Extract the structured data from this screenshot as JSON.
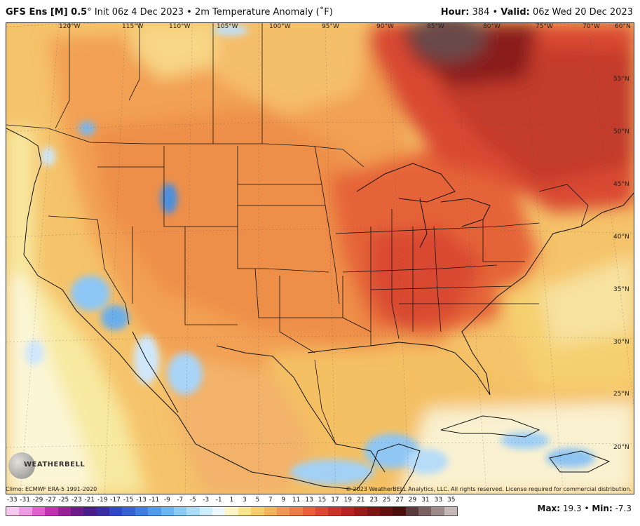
{
  "header": {
    "model": "GFS Ens [M] 0.5",
    "degree_mark": "°",
    "init": " Init 06z 4 Dec 2023",
    "separator": " • ",
    "field": "2m Temperature Anomaly (˚F)",
    "hour_label": "Hour:",
    "hour_value": " 384",
    "valid_label": "Valid:",
    "valid_value": " 06z Wed 20 Dec 2023"
  },
  "map": {
    "lon_labels": [
      "120°W",
      "115°W",
      "110°W",
      "105°W",
      "100°W",
      "95°W",
      "90°W",
      "85°W",
      "80°W",
      "75°W",
      "70°W"
    ],
    "lat_labels": [
      "60°N",
      "55°N",
      "50°N",
      "45°N",
      "40°N",
      "35°N",
      "30°N",
      "25°N",
      "20°N"
    ]
  },
  "footer": {
    "climo": "Climo: ECMWF ERA-5 1991-2020",
    "copyright": "© 2023 WeatherBELL Analytics, LLC. All rights reserved. License required for commercial distribution.",
    "logo_text": "WEATHERBELL"
  },
  "legend": {
    "labels": [
      "-33",
      "-31",
      "-29",
      "-27",
      "-25",
      "-23",
      "-21",
      "-19",
      "-17",
      "-15",
      "-13",
      "-11",
      "-9",
      "-7",
      "-5",
      "-3",
      "-1",
      "1",
      "3",
      "5",
      "7",
      "9",
      "11",
      "13",
      "15",
      "17",
      "19",
      "21",
      "23",
      "25",
      "27",
      "29",
      "31",
      "33",
      "35"
    ],
    "colors": [
      "#f7c9f0",
      "#f09be3",
      "#e35fd2",
      "#c42fb3",
      "#9a1f98",
      "#6e1a8c",
      "#4b1c8c",
      "#3a2ea8",
      "#2f48c4",
      "#3563d6",
      "#3f7fe3",
      "#4f9bed",
      "#68b6f3",
      "#87cdf7",
      "#a9def9",
      "#cdeefc",
      "#eef7fd",
      "#fdf6c4",
      "#f9e68c",
      "#f7cf6a",
      "#f5b35a",
      "#f39651",
      "#ee7a45",
      "#e6603a",
      "#d94a30",
      "#c83528",
      "#b42420",
      "#9a1a1a",
      "#7e1414",
      "#641010",
      "#4e0d0d",
      "#5a3a3a",
      "#7a6060",
      "#9c8a8a",
      "#c4b8b8"
    ]
  },
  "stats": {
    "max_label": "Max:",
    "max_value": " 19.3",
    "min_sep": " • ",
    "min_label": "Min:",
    "min_value": " -7.3"
  }
}
